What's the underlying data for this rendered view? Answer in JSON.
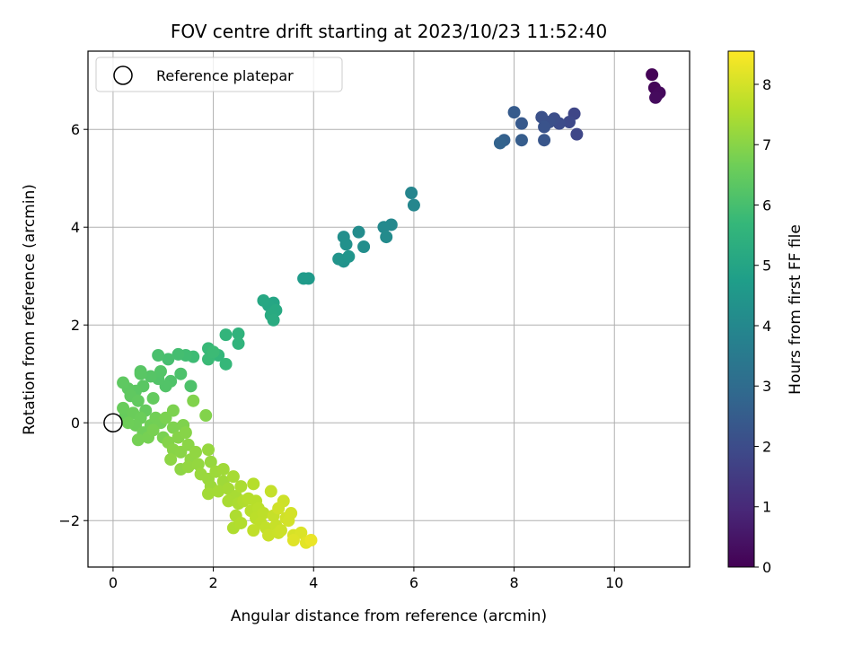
{
  "chart_data": {
    "type": "scatter",
    "title": "FOV centre drift starting at 2023/10/23 11:52:40",
    "xlabel": "Angular distance from reference (arcmin)",
    "ylabel": "Rotation from reference (arcmin)",
    "xlim": [
      -0.5,
      11.5
    ],
    "ylim": [
      -2.95,
      7.6
    ],
    "xticks": [
      0,
      2,
      4,
      6,
      8,
      10
    ],
    "yticks": [
      -2,
      0,
      2,
      4,
      6
    ],
    "xtick_labels": [
      "0",
      "2",
      "4",
      "6",
      "8",
      "10"
    ],
    "ytick_labels": [
      "−2",
      "0",
      "2",
      "4",
      "6"
    ],
    "grid": true,
    "legend": {
      "placement": "top-left",
      "entries": [
        "Reference platepar"
      ]
    },
    "reference_point": {
      "x": 0,
      "y": 0,
      "name": "Reference platepar"
    },
    "colorbar": {
      "label": "Hours from first FF file",
      "range": [
        0,
        8.55
      ],
      "ticks": [
        0,
        1,
        2,
        3,
        4,
        5,
        6,
        7,
        8
      ],
      "tick_labels": [
        "0",
        "1",
        "2",
        "3",
        "4",
        "5",
        "6",
        "7",
        "8"
      ],
      "colormap": "viridis",
      "colors": [
        "#440154",
        "#482878",
        "#3e4989",
        "#31688e",
        "#26828e",
        "#1f9e89",
        "#35b779",
        "#6ece58",
        "#b5de2b",
        "#fde725"
      ]
    },
    "points": [
      {
        "x": 10.75,
        "y": 7.12,
        "t": 0.05
      },
      {
        "x": 10.8,
        "y": 6.85,
        "t": 0.1
      },
      {
        "x": 10.85,
        "y": 6.7,
        "t": 0.15
      },
      {
        "x": 10.9,
        "y": 6.75,
        "t": 0.2
      },
      {
        "x": 10.82,
        "y": 6.65,
        "t": 0.25
      },
      {
        "x": 9.2,
        "y": 6.32,
        "t": 1.8
      },
      {
        "x": 9.25,
        "y": 5.9,
        "t": 1.85
      },
      {
        "x": 9.1,
        "y": 6.15,
        "t": 1.9
      },
      {
        "x": 8.9,
        "y": 6.12,
        "t": 2.0
      },
      {
        "x": 8.8,
        "y": 6.22,
        "t": 2.05
      },
      {
        "x": 8.7,
        "y": 6.15,
        "t": 2.1
      },
      {
        "x": 8.55,
        "y": 6.25,
        "t": 2.15
      },
      {
        "x": 8.6,
        "y": 6.05,
        "t": 2.2
      },
      {
        "x": 8.6,
        "y": 5.78,
        "t": 2.3
      },
      {
        "x": 8.15,
        "y": 6.12,
        "t": 2.4
      },
      {
        "x": 8.0,
        "y": 6.35,
        "t": 2.45
      },
      {
        "x": 8.15,
        "y": 5.78,
        "t": 2.5
      },
      {
        "x": 7.8,
        "y": 5.78,
        "t": 2.6
      },
      {
        "x": 7.72,
        "y": 5.72,
        "t": 2.7
      },
      {
        "x": 5.95,
        "y": 4.7,
        "t": 3.9
      },
      {
        "x": 6.0,
        "y": 4.45,
        "t": 3.95
      },
      {
        "x": 5.55,
        "y": 4.05,
        "t": 4.0
      },
      {
        "x": 5.4,
        "y": 4.0,
        "t": 4.05
      },
      {
        "x": 5.45,
        "y": 3.8,
        "t": 4.1
      },
      {
        "x": 5.0,
        "y": 3.6,
        "t": 4.2
      },
      {
        "x": 4.9,
        "y": 3.9,
        "t": 4.15
      },
      {
        "x": 4.6,
        "y": 3.8,
        "t": 4.25
      },
      {
        "x": 4.65,
        "y": 3.65,
        "t": 4.3
      },
      {
        "x": 4.6,
        "y": 3.3,
        "t": 4.35
      },
      {
        "x": 4.5,
        "y": 3.35,
        "t": 4.4
      },
      {
        "x": 4.7,
        "y": 3.4,
        "t": 4.45
      },
      {
        "x": 3.9,
        "y": 2.95,
        "t": 4.6
      },
      {
        "x": 3.8,
        "y": 2.95,
        "t": 4.65
      },
      {
        "x": 3.2,
        "y": 2.45,
        "t": 5.0
      },
      {
        "x": 3.1,
        "y": 2.4,
        "t": 5.05
      },
      {
        "x": 3.0,
        "y": 2.5,
        "t": 5.1
      },
      {
        "x": 3.25,
        "y": 2.3,
        "t": 5.15
      },
      {
        "x": 3.15,
        "y": 2.2,
        "t": 5.2
      },
      {
        "x": 3.2,
        "y": 2.1,
        "t": 5.25
      },
      {
        "x": 2.5,
        "y": 1.82,
        "t": 5.5
      },
      {
        "x": 2.5,
        "y": 1.62,
        "t": 5.55
      },
      {
        "x": 2.25,
        "y": 1.8,
        "t": 5.6
      },
      {
        "x": 2.1,
        "y": 1.38,
        "t": 5.65
      },
      {
        "x": 2.25,
        "y": 1.2,
        "t": 5.7
      },
      {
        "x": 1.9,
        "y": 1.52,
        "t": 5.75
      },
      {
        "x": 1.9,
        "y": 1.3,
        "t": 5.8
      },
      {
        "x": 2.0,
        "y": 1.45,
        "t": 5.82
      },
      {
        "x": 1.6,
        "y": 1.35,
        "t": 5.85
      },
      {
        "x": 1.45,
        "y": 1.38,
        "t": 5.9
      },
      {
        "x": 1.3,
        "y": 1.4,
        "t": 5.95
      },
      {
        "x": 1.1,
        "y": 1.3,
        "t": 6.0
      },
      {
        "x": 0.9,
        "y": 1.38,
        "t": 6.05
      },
      {
        "x": 1.35,
        "y": 1.0,
        "t": 6.1
      },
      {
        "x": 1.55,
        "y": 0.75,
        "t": 6.12
      },
      {
        "x": 1.15,
        "y": 0.85,
        "t": 6.15
      },
      {
        "x": 1.05,
        "y": 0.75,
        "t": 6.18
      },
      {
        "x": 0.9,
        "y": 0.9,
        "t": 6.2
      },
      {
        "x": 0.95,
        "y": 1.05,
        "t": 6.22
      },
      {
        "x": 0.75,
        "y": 0.95,
        "t": 6.25
      },
      {
        "x": 0.55,
        "y": 1.05,
        "t": 6.28
      },
      {
        "x": 0.55,
        "y": 1.0,
        "t": 6.3
      },
      {
        "x": 0.6,
        "y": 0.75,
        "t": 6.32
      },
      {
        "x": 0.45,
        "y": 0.65,
        "t": 6.35
      },
      {
        "x": 0.3,
        "y": 0.7,
        "t": 6.38
      },
      {
        "x": 0.2,
        "y": 0.82,
        "t": 6.4
      },
      {
        "x": 0.35,
        "y": 0.55,
        "t": 6.42
      },
      {
        "x": 0.5,
        "y": 0.45,
        "t": 6.45
      },
      {
        "x": 0.8,
        "y": 0.5,
        "t": 6.48
      },
      {
        "x": 0.65,
        "y": 0.25,
        "t": 6.5
      },
      {
        "x": 0.25,
        "y": 0.15,
        "t": 6.52
      },
      {
        "x": 0.2,
        "y": 0.3,
        "t": 6.55
      },
      {
        "x": 0.4,
        "y": 0.2,
        "t": 6.58
      },
      {
        "x": 0.55,
        "y": 0.1,
        "t": 6.6
      },
      {
        "x": 0.45,
        "y": -0.05,
        "t": 6.62
      },
      {
        "x": 0.3,
        "y": 0.0,
        "t": 6.64
      },
      {
        "x": 0.6,
        "y": -0.2,
        "t": 6.66
      },
      {
        "x": 0.75,
        "y": -0.05,
        "t": 6.68
      },
      {
        "x": 0.85,
        "y": 0.1,
        "t": 6.7
      },
      {
        "x": 0.95,
        "y": 0.0,
        "t": 6.72
      },
      {
        "x": 0.5,
        "y": -0.35,
        "t": 6.74
      },
      {
        "x": 0.7,
        "y": -0.3,
        "t": 6.76
      },
      {
        "x": 0.8,
        "y": -0.15,
        "t": 6.78
      },
      {
        "x": 1.0,
        "y": -0.3,
        "t": 6.8
      },
      {
        "x": 1.05,
        "y": 0.1,
        "t": 6.82
      },
      {
        "x": 1.2,
        "y": 0.25,
        "t": 6.84
      },
      {
        "x": 1.2,
        "y": -0.1,
        "t": 6.86
      },
      {
        "x": 1.4,
        "y": -0.05,
        "t": 6.88
      },
      {
        "x": 1.6,
        "y": 0.45,
        "t": 6.9
      },
      {
        "x": 1.85,
        "y": 0.15,
        "t": 6.92
      },
      {
        "x": 1.1,
        "y": -0.4,
        "t": 6.94
      },
      {
        "x": 1.3,
        "y": -0.3,
        "t": 6.96
      },
      {
        "x": 1.45,
        "y": -0.2,
        "t": 6.98
      },
      {
        "x": 1.2,
        "y": -0.55,
        "t": 7.0
      },
      {
        "x": 1.35,
        "y": -0.6,
        "t": 7.02
      },
      {
        "x": 1.5,
        "y": -0.45,
        "t": 7.04
      },
      {
        "x": 1.15,
        "y": -0.75,
        "t": 7.06
      },
      {
        "x": 1.35,
        "y": -0.95,
        "t": 7.08
      },
      {
        "x": 1.55,
        "y": -0.75,
        "t": 7.1
      },
      {
        "x": 1.65,
        "y": -0.6,
        "t": 7.12
      },
      {
        "x": 1.5,
        "y": -0.9,
        "t": 7.14
      },
      {
        "x": 1.7,
        "y": -0.85,
        "t": 7.16
      },
      {
        "x": 1.9,
        "y": -0.55,
        "t": 7.18
      },
      {
        "x": 1.95,
        "y": -0.8,
        "t": 7.2
      },
      {
        "x": 1.75,
        "y": -1.05,
        "t": 7.22
      },
      {
        "x": 1.9,
        "y": -1.15,
        "t": 7.24
      },
      {
        "x": 1.95,
        "y": -1.3,
        "t": 7.26
      },
      {
        "x": 2.05,
        "y": -1.0,
        "t": 7.28
      },
      {
        "x": 2.2,
        "y": -1.2,
        "t": 7.3
      },
      {
        "x": 2.2,
        "y": -0.95,
        "t": 7.32
      },
      {
        "x": 1.9,
        "y": -1.45,
        "t": 7.34
      },
      {
        "x": 2.1,
        "y": -1.4,
        "t": 7.36
      },
      {
        "x": 2.3,
        "y": -1.35,
        "t": 7.38
      },
      {
        "x": 2.4,
        "y": -1.1,
        "t": 7.4
      },
      {
        "x": 2.45,
        "y": -1.5,
        "t": 7.42
      },
      {
        "x": 2.3,
        "y": -1.6,
        "t": 7.44
      },
      {
        "x": 2.55,
        "y": -1.3,
        "t": 7.46
      },
      {
        "x": 2.5,
        "y": -1.65,
        "t": 7.48
      },
      {
        "x": 2.45,
        "y": -1.9,
        "t": 7.5
      },
      {
        "x": 2.4,
        "y": -2.15,
        "t": 7.52
      },
      {
        "x": 2.6,
        "y": -1.6,
        "t": 7.54
      },
      {
        "x": 2.55,
        "y": -2.05,
        "t": 7.56
      },
      {
        "x": 2.7,
        "y": -1.55,
        "t": 7.58
      },
      {
        "x": 2.8,
        "y": -1.25,
        "t": 7.6
      },
      {
        "x": 2.85,
        "y": -1.6,
        "t": 7.62
      },
      {
        "x": 2.75,
        "y": -1.8,
        "t": 7.64
      },
      {
        "x": 2.9,
        "y": -1.75,
        "t": 7.66
      },
      {
        "x": 2.85,
        "y": -1.95,
        "t": 7.68
      },
      {
        "x": 3.0,
        "y": -1.85,
        "t": 7.7
      },
      {
        "x": 2.95,
        "y": -2.05,
        "t": 7.72
      },
      {
        "x": 2.8,
        "y": -2.2,
        "t": 7.74
      },
      {
        "x": 3.05,
        "y": -2.15,
        "t": 7.76
      },
      {
        "x": 3.15,
        "y": -1.4,
        "t": 7.8
      },
      {
        "x": 3.2,
        "y": -1.9,
        "t": 7.82
      },
      {
        "x": 3.25,
        "y": -2.1,
        "t": 7.84
      },
      {
        "x": 3.1,
        "y": -2.3,
        "t": 7.86
      },
      {
        "x": 3.3,
        "y": -2.25,
        "t": 7.88
      },
      {
        "x": 3.35,
        "y": -2.2,
        "t": 7.9
      },
      {
        "x": 3.4,
        "y": -1.6,
        "t": 7.92
      },
      {
        "x": 3.3,
        "y": -1.75,
        "t": 7.94
      },
      {
        "x": 3.45,
        "y": -1.95,
        "t": 7.96
      },
      {
        "x": 3.5,
        "y": -2.0,
        "t": 7.98
      },
      {
        "x": 3.55,
        "y": -1.85,
        "t": 8.0
      },
      {
        "x": 3.6,
        "y": -2.3,
        "t": 8.05
      },
      {
        "x": 3.75,
        "y": -2.25,
        "t": 8.1
      },
      {
        "x": 3.6,
        "y": -2.4,
        "t": 8.15
      },
      {
        "x": 3.85,
        "y": -2.45,
        "t": 8.2
      },
      {
        "x": 3.95,
        "y": -2.4,
        "t": 8.3
      }
    ]
  }
}
